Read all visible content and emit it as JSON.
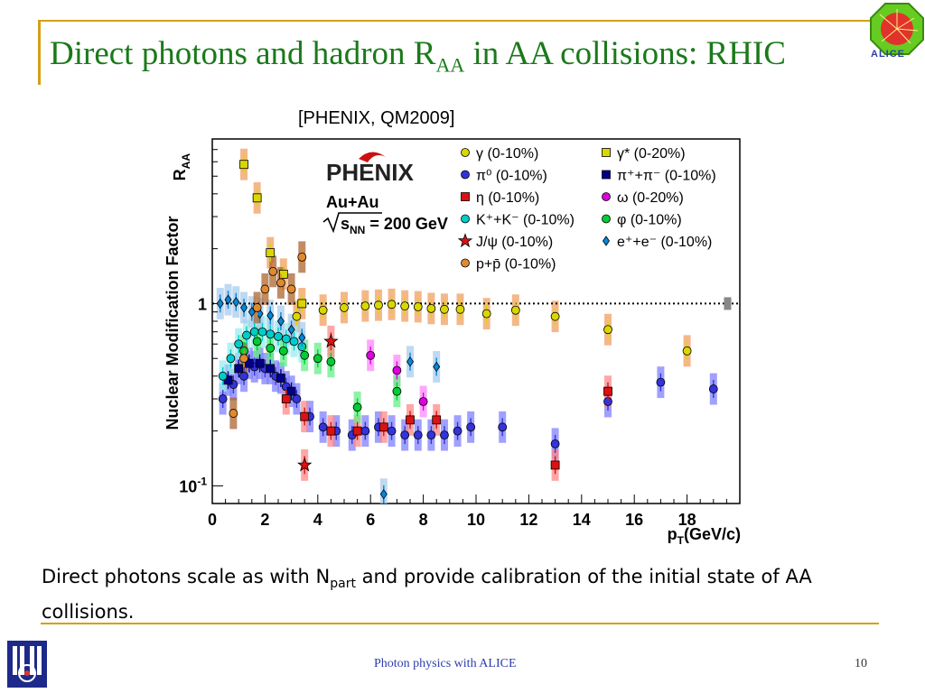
{
  "slide": {
    "title_main": "Direct photons and hadron R",
    "title_sub": "AA",
    "title_rest": " in AA collisions: RHIC",
    "alice_logo_text": "ALICE",
    "citation": "[PHENIX, QM2009]",
    "caption_part1": "Direct photons scale as with N",
    "caption_sub": "part",
    "caption_part2": " and provide calibration of the initial state of AA collisions.",
    "footer": "Photon physics with ALICE",
    "page_number": "10"
  },
  "chart_data": {
    "type": "scatter",
    "ylabel": "Nuclear Modification Factor",
    "ylabel_right": "R",
    "ylabel_right_sub": "AA",
    "xlabel": "p",
    "xlabel_sub": "T",
    "xlabel_rest": "(GeV/c)",
    "xlim": [
      0,
      20
    ],
    "ylim": [
      0.08,
      8
    ],
    "yscale": "log",
    "xticks": [
      0,
      2,
      4,
      6,
      8,
      10,
      12,
      14,
      16,
      18
    ],
    "yticks": [
      {
        "value": 1,
        "label": "1"
      },
      {
        "value": 0.1,
        "label": "10",
        "sup": "-1"
      }
    ],
    "reference_line": 1,
    "legend_placement": "top-right",
    "inset": {
      "logo": "PHENIX",
      "system": "Au+Au",
      "energy": "s",
      "energy_sub": "NN",
      "energy_rest": " = 200 GeV"
    },
    "series": [
      {
        "name": "γ (0-10%)",
        "color": "#d8d800",
        "marker": "circle",
        "band": "#f0a060",
        "points": [
          [
            3.2,
            0.85
          ],
          [
            4.2,
            0.92
          ],
          [
            5.0,
            0.95
          ],
          [
            5.8,
            0.97
          ],
          [
            6.3,
            0.98
          ],
          [
            6.8,
            0.99
          ],
          [
            7.3,
            0.97
          ],
          [
            7.8,
            0.96
          ],
          [
            8.3,
            0.94
          ],
          [
            8.8,
            0.93
          ],
          [
            9.4,
            0.93
          ],
          [
            10.4,
            0.88
          ],
          [
            11.5,
            0.92
          ],
          [
            13.0,
            0.85
          ],
          [
            15.0,
            0.72
          ],
          [
            18.0,
            0.55
          ]
        ]
      },
      {
        "name": "γ* (0-20%)",
        "color": "#d8d800",
        "marker": "square",
        "band": "#f0a060",
        "points": [
          [
            1.2,
            5.8
          ],
          [
            1.7,
            3.8
          ],
          [
            2.2,
            1.9
          ],
          [
            2.7,
            1.45
          ],
          [
            3.4,
            1.0
          ]
        ]
      },
      {
        "name": "π⁰ (0-10%)",
        "color": "#3333dd",
        "marker": "circle",
        "band": "#8080ff",
        "points": [
          [
            0.4,
            0.3
          ],
          [
            0.8,
            0.36
          ],
          [
            1.2,
            0.4
          ],
          [
            1.6,
            0.45
          ],
          [
            2.0,
            0.44
          ],
          [
            2.4,
            0.4
          ],
          [
            2.8,
            0.35
          ],
          [
            3.2,
            0.3
          ],
          [
            3.7,
            0.24
          ],
          [
            4.2,
            0.21
          ],
          [
            4.7,
            0.2
          ],
          [
            5.3,
            0.19
          ],
          [
            5.8,
            0.2
          ],
          [
            6.3,
            0.21
          ],
          [
            6.8,
            0.2
          ],
          [
            7.3,
            0.19
          ],
          [
            7.8,
            0.19
          ],
          [
            8.3,
            0.19
          ],
          [
            8.8,
            0.19
          ],
          [
            9.3,
            0.2
          ],
          [
            9.8,
            0.21
          ],
          [
            11.0,
            0.21
          ],
          [
            13.0,
            0.17
          ],
          [
            15.0,
            0.29
          ],
          [
            17.0,
            0.37
          ],
          [
            19.0,
            0.34
          ]
        ]
      },
      {
        "name": "π⁺+π⁻ (0-10%)",
        "color": "#000088",
        "marker": "square",
        "band": "#8080ff",
        "points": [
          [
            0.6,
            0.38
          ],
          [
            1.0,
            0.44
          ],
          [
            1.4,
            0.47
          ],
          [
            1.8,
            0.47
          ],
          [
            2.2,
            0.44
          ],
          [
            2.6,
            0.39
          ],
          [
            3.0,
            0.33
          ]
        ]
      },
      {
        "name": "η (0-10%)",
        "color": "#dd1111",
        "marker": "square",
        "band": "#ff8888",
        "points": [
          [
            2.8,
            0.3
          ],
          [
            3.5,
            0.24
          ],
          [
            4.5,
            0.2
          ],
          [
            5.5,
            0.2
          ],
          [
            6.5,
            0.21
          ],
          [
            7.5,
            0.23
          ],
          [
            8.5,
            0.23
          ],
          [
            13.0,
            0.13
          ],
          [
            15.0,
            0.33
          ]
        ]
      },
      {
        "name": "ω (0-20%)",
        "color": "#dd00dd",
        "marker": "circle",
        "band": "#ff88ff",
        "points": [
          [
            6.0,
            0.52
          ],
          [
            7.0,
            0.43
          ],
          [
            8.0,
            0.29
          ]
        ]
      },
      {
        "name": "K⁺+K⁻ (0-10%)",
        "color": "#00cccc",
        "marker": "circle",
        "band": "#99eeee",
        "points": [
          [
            0.4,
            0.4
          ],
          [
            0.7,
            0.5
          ],
          [
            1.0,
            0.6
          ],
          [
            1.3,
            0.67
          ],
          [
            1.6,
            0.7
          ],
          [
            1.9,
            0.7
          ],
          [
            2.2,
            0.68
          ],
          [
            2.5,
            0.66
          ],
          [
            2.8,
            0.64
          ],
          [
            3.1,
            0.62
          ],
          [
            3.4,
            0.58
          ]
        ]
      },
      {
        "name": "φ (0-10%)",
        "color": "#00cc33",
        "marker": "circle",
        "band": "#66ee88",
        "points": [
          [
            1.2,
            0.55
          ],
          [
            1.7,
            0.62
          ],
          [
            2.2,
            0.57
          ],
          [
            2.7,
            0.55
          ],
          [
            3.5,
            0.52
          ],
          [
            4.0,
            0.5
          ],
          [
            4.5,
            0.48
          ],
          [
            5.5,
            0.27
          ],
          [
            7.0,
            0.33
          ]
        ]
      },
      {
        "name": "J/ψ (0-10%)",
        "color": "#dd1111",
        "marker": "star",
        "band": "#ff8888",
        "points": [
          [
            3.5,
            0.13
          ],
          [
            4.5,
            0.62
          ]
        ]
      },
      {
        "name": "e⁺+e⁻ (0-10%)",
        "color": "#0088dd",
        "marker": "diamond",
        "band": "#aaccee",
        "points": [
          [
            0.3,
            1.0
          ],
          [
            0.6,
            1.05
          ],
          [
            0.9,
            1.02
          ],
          [
            1.2,
            0.95
          ],
          [
            1.5,
            0.9
          ],
          [
            1.8,
            0.88
          ],
          [
            2.2,
            0.86
          ],
          [
            2.6,
            0.8
          ],
          [
            3.0,
            0.72
          ],
          [
            3.4,
            0.65
          ],
          [
            6.5,
            0.09
          ],
          [
            7.5,
            0.48
          ],
          [
            8.5,
            0.45
          ]
        ]
      },
      {
        "name": "p+p̄ (0-10%)",
        "color": "#e08a30",
        "marker": "circle",
        "band": "#aa6633",
        "points": [
          [
            0.8,
            0.25
          ],
          [
            1.2,
            0.5
          ],
          [
            1.7,
            0.95
          ],
          [
            2.0,
            1.2
          ],
          [
            2.3,
            1.5
          ],
          [
            2.6,
            1.3
          ],
          [
            3.0,
            1.2
          ],
          [
            3.4,
            1.8
          ]
        ]
      }
    ]
  }
}
